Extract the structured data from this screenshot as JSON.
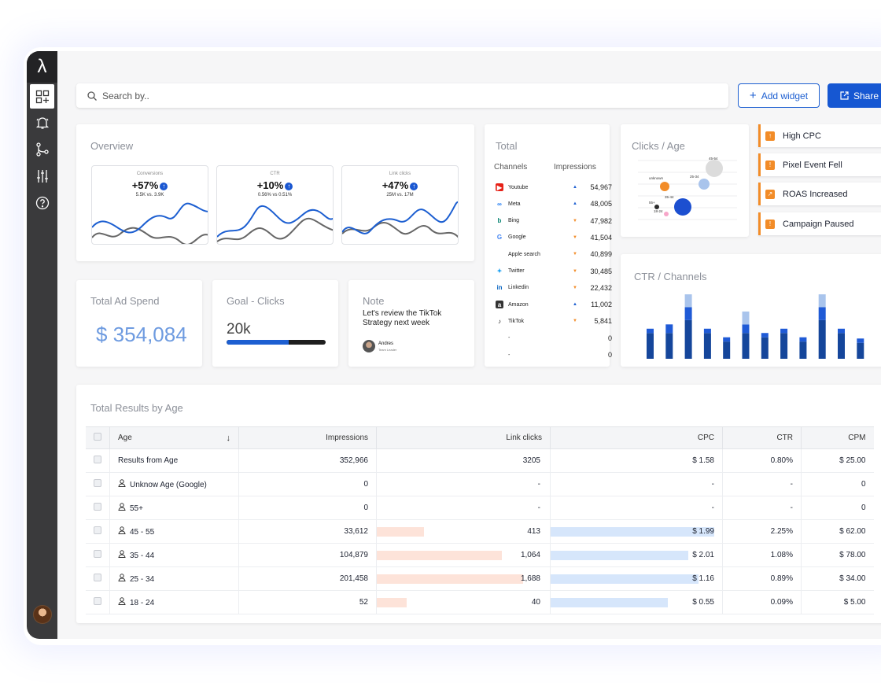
{
  "sidebar": {
    "logo": "λ",
    "items": [
      "dashboard-add",
      "bell",
      "flow",
      "sliders",
      "help"
    ]
  },
  "search": {
    "placeholder": "Search by.."
  },
  "toolbar": {
    "add_widget": "Add widget",
    "share": "Share"
  },
  "overview": {
    "title": "Overview",
    "cards": [
      {
        "label": "Conversions",
        "value": "+57%",
        "sub": "5.5K vs. 3.9K"
      },
      {
        "label": "CTR",
        "value": "+10%",
        "sub": "0.56% vs 0.51%"
      },
      {
        "label": "Link clicks",
        "value": "+47%",
        "sub": "25M vs. 17M"
      }
    ]
  },
  "spend": {
    "title": "Total Ad Spend",
    "value": "$ 354,084"
  },
  "goal": {
    "title": "Goal - Clicks",
    "value": "20k",
    "progress": 0.63
  },
  "note": {
    "title": "Note",
    "text": "Let's review the TikTok Strategy next week",
    "author": "Andres",
    "role": "Team Leader"
  },
  "total": {
    "title": "Total",
    "col_channels": "Channels",
    "col_impressions": "Impressions",
    "rows": [
      {
        "icon": "youtube-icon",
        "name": "Youtube",
        "trend": "up",
        "value": "54,967"
      },
      {
        "icon": "meta-icon",
        "name": "Meta",
        "trend": "up",
        "value": "48,005"
      },
      {
        "icon": "bing-icon",
        "name": "Bing",
        "trend": "down",
        "value": "47,982"
      },
      {
        "icon": "google-icon",
        "name": "Google",
        "trend": "down",
        "value": "41,504"
      },
      {
        "icon": "apple-icon",
        "name": "Apple search",
        "trend": "down",
        "value": "40,899"
      },
      {
        "icon": "twitter-icon",
        "name": "Twitter",
        "trend": "down",
        "value": "30,485"
      },
      {
        "icon": "linkedin-icon",
        "name": "Linkedin",
        "trend": "down",
        "value": "22,432"
      },
      {
        "icon": "amazon-icon",
        "name": "Amazon",
        "trend": "up",
        "value": "11,002"
      },
      {
        "icon": "tiktok-icon",
        "name": "TikTok",
        "trend": "down",
        "value": "5,841"
      },
      {
        "icon": "",
        "name": "-",
        "trend": "",
        "value": "0"
      },
      {
        "icon": "",
        "name": "-",
        "trend": "",
        "value": "0"
      }
    ]
  },
  "clicks_age": {
    "title": "Clicks / Age",
    "bubbles": [
      "45-54",
      "unknown",
      "25-34",
      "35-44",
      "55+",
      "18-24"
    ]
  },
  "alerts": [
    {
      "label": "High CPC",
      "icon": "arrow-up-icon"
    },
    {
      "label": "Pixel Event Fell",
      "icon": "warning-icon"
    },
    {
      "label": "ROAS Increased",
      "icon": "trend-up-icon"
    },
    {
      "label": "Campaign Paused",
      "icon": "warning-icon"
    }
  ],
  "ctr_channels": {
    "title": "CTR / Channels",
    "chart_data": {
      "type": "bar",
      "stacked": true,
      "series": [
        {
          "values": [
            4.2,
            4.2,
            6.3,
            4.2,
            2.8,
            4.2,
            3.5,
            4.2,
            2.8,
            6.3,
            4.2,
            2.6
          ]
        },
        {
          "values": [
            0.7,
            1.4,
            2.1,
            0.7,
            0.7,
            1.4,
            0.7,
            0.7,
            0.7,
            2.1,
            0.7,
            0.7
          ]
        },
        {
          "values": [
            0,
            0,
            2.1,
            0,
            0,
            2.1,
            0,
            0,
            0,
            2.1,
            0,
            0
          ]
        }
      ],
      "colors": [
        "#15469b",
        "#1f5ad6",
        "#a9c4ec"
      ]
    }
  },
  "results": {
    "title": "Total Results by Age",
    "columns": [
      "Age",
      "Impressions",
      "Link clicks",
      "CPC",
      "CTR",
      "CPM"
    ],
    "rows": [
      {
        "age": "Results from Age",
        "person": false,
        "impressions": "352,966",
        "clicks": "3205",
        "cpc": "$ 1.58",
        "ctr": "0.80%",
        "cpm": "$ 25.00",
        "clicks_bar": 0,
        "cpc_bar": 0
      },
      {
        "age": "Unknow Age (Google)",
        "person": true,
        "impressions": "0",
        "clicks": "-",
        "cpc": "-",
        "ctr": "-",
        "cpm": "0",
        "clicks_bar": 0,
        "cpc_bar": 0
      },
      {
        "age": "55+",
        "person": true,
        "impressions": "0",
        "clicks": "-",
        "cpc": "-",
        "ctr": "-",
        "cpm": "0",
        "clicks_bar": 0,
        "cpc_bar": 0
      },
      {
        "age": "45 - 55",
        "person": true,
        "impressions": "33,612",
        "clicks": "413",
        "cpc": "$ 1.99",
        "ctr": "2.25%",
        "cpm": "$ 62.00",
        "clicks_bar": 0.27,
        "cpc_bar": 0.95
      },
      {
        "age": "35 - 44",
        "person": true,
        "impressions": "104,879",
        "clicks": "1,064",
        "cpc": "$ 2.01",
        "ctr": "1.08%",
        "cpm": "$ 78.00",
        "clicks_bar": 0.72,
        "cpc_bar": 0.8
      },
      {
        "age": "25 - 34",
        "person": true,
        "impressions": "201,458",
        "clicks": "1,688",
        "cpc": "$ 1.16",
        "ctr": "0.89%",
        "cpm": "$ 34.00",
        "clicks_bar": 0.84,
        "cpc_bar": 0.86
      },
      {
        "age": "18 - 24",
        "person": true,
        "impressions": "52",
        "clicks": "40",
        "cpc": "$ 0.55",
        "ctr": "0.09%",
        "cpm": "$ 5.00",
        "clicks_bar": 0.17,
        "cpc_bar": 0.68
      }
    ]
  }
}
